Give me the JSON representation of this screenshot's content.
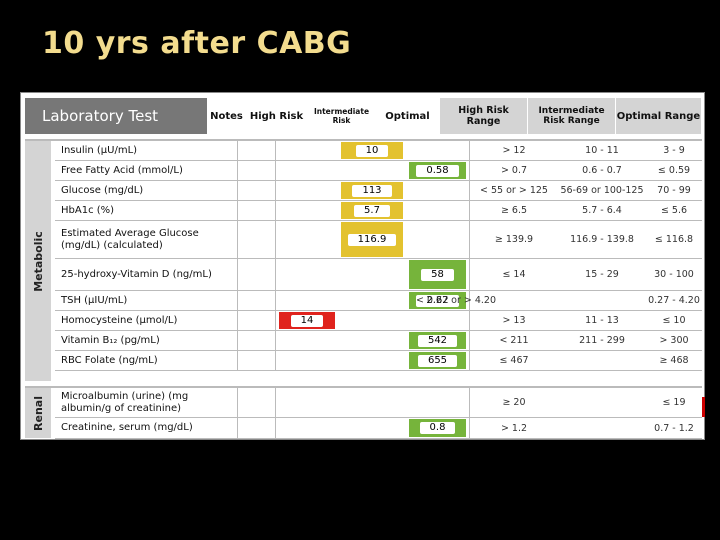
{
  "slide": {
    "title": "10 yrs after CABG"
  },
  "header": {
    "lab_test": "Laboratory Test",
    "notes": "Notes",
    "high_risk": "High Risk",
    "intermediate_risk": "Intermediate Risk",
    "optimal": "Optimal",
    "high_risk_range": "High Risk Range",
    "intermediate_risk_range": "Intermediate Risk Range",
    "optimal_range": "Optimal Range"
  },
  "metabolic": {
    "label": "Metabolic",
    "rows": [
      {
        "name": "Insulin (µU/mL)",
        "int": "10",
        "hr": "> 12",
        "ir": "10 - 11",
        "or": "3 - 9"
      },
      {
        "name": "Free Fatty Acid (mmol/L)",
        "opt": "0.58",
        "hr": "> 0.7",
        "ir": "0.6 - 0.7",
        "or": "≤ 0.59"
      },
      {
        "name": "Glucose (mg/dL)",
        "int": "113",
        "hr": "< 55 or > 125",
        "ir": "56-69 or 100-125",
        "or": "70 - 99"
      },
      {
        "name": "HbA1c (%)",
        "int": "5.7",
        "hr": "≥ 6.5",
        "ir": "5.7 - 6.4",
        "or": "≤ 5.6"
      },
      {
        "name": "Estimated Average Glucose (mg/dL) (calculated)",
        "int": "116.9",
        "hr": "≥ 139.9",
        "ir": "116.9 - 139.8",
        "or": "≤ 116.8"
      },
      {
        "name": "25-hydroxy-Vitamin D (ng/mL)",
        "opt": "58",
        "hr": "≤ 14",
        "ir": "15 - 29",
        "or": "30 - 100"
      },
      {
        "name": "TSH (µIU/mL)",
        "opt": "2.62",
        "hr_wide": "< 0.27 or > 4.20",
        "or": "0.27 - 4.20"
      },
      {
        "name": "Homocysteine (µmol/L)",
        "high": "14",
        "hr": "> 13",
        "ir": "11 - 13",
        "or": "≤ 10"
      },
      {
        "name": "Vitamin B₁₂ (pg/mL)",
        "opt": "542",
        "hr": "< 211",
        "ir": "211 - 299",
        "or": "> 300"
      },
      {
        "name": "RBC Folate (ng/mL)",
        "opt": "655",
        "hr": "≤ 467",
        "or": "≥ 468"
      }
    ]
  },
  "renal": {
    "label": "Renal",
    "rows": [
      {
        "name": "Microalbumin (urine) (mg albumin/g of creatinine)",
        "hr": "≥ 20",
        "or": "≤ 19"
      },
      {
        "name": "Creatinine, serum (mg/dL)",
        "opt": "0.8",
        "hr": "> 1.2",
        "or": "0.7 - 1.2"
      }
    ]
  },
  "colors": {
    "title": "#f3dc8e",
    "yellow": "#e3c22f",
    "green": "#76b43b",
    "red": "#e0231d"
  }
}
